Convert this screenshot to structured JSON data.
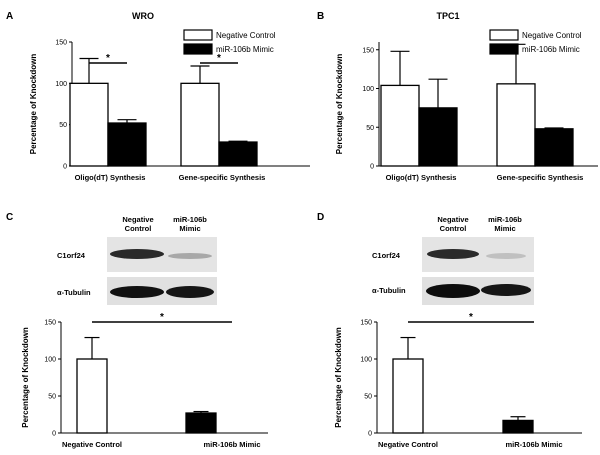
{
  "panels": {
    "A": {
      "letter": "A",
      "title": "WRO"
    },
    "B": {
      "letter": "B",
      "title": "TPC1"
    },
    "C": {
      "letter": "C"
    },
    "D": {
      "letter": "D"
    }
  },
  "legend": {
    "negative_control": "Negative  Control",
    "mimic": "miR-106b Mimic"
  },
  "blots": {
    "C": {
      "header_neg": [
        "Negative",
        "Control"
      ],
      "header_mimic": [
        "miR-106b",
        "Mimic"
      ],
      "row1": "C1orf24",
      "row2": "α-Tubulin"
    },
    "D": {
      "header_neg": [
        "Negative",
        "Control"
      ],
      "header_mimic": [
        "miR-106b",
        "Mimic"
      ],
      "row1": "C1orf24",
      "row2": "α-Tubulin"
    }
  },
  "colors": {
    "negative_control": "#ffffff",
    "mimic": "#000000",
    "stroke": "#000000"
  },
  "chart_data": [
    {
      "panel": "A",
      "type": "bar",
      "title": "WRO",
      "ylabel": "Percentage of  Knockdown",
      "ylim": [
        0,
        150
      ],
      "yticks": [
        0,
        50,
        100,
        150
      ],
      "categories": [
        "Oligo(dT) Synthesis",
        "Gene-specific Synthesis"
      ],
      "series": [
        {
          "name": "Negative  Control",
          "values": [
            100,
            100
          ],
          "errors": [
            30,
            21
          ]
        },
        {
          "name": "miR-106b Mimic",
          "values": [
            52,
            29
          ],
          "errors": [
            4,
            1
          ]
        }
      ],
      "significance": [
        "*",
        "*"
      ],
      "legend": "top-right"
    },
    {
      "panel": "B",
      "type": "bar",
      "title": "TPC1",
      "ylabel": "Percentage of  Knockdown",
      "ylim": [
        0,
        160
      ],
      "yticks": [
        0,
        50,
        100,
        150
      ],
      "categories": [
        "Oligo(dT) Synthesis",
        "Gene-specific Synthesis"
      ],
      "series": [
        {
          "name": "Negative  Control",
          "values": [
            104,
            106
          ],
          "errors": [
            44,
            51
          ]
        },
        {
          "name": "miR-106b Mimic",
          "values": [
            75,
            48
          ],
          "errors": [
            37,
            1
          ]
        }
      ],
      "significance": [],
      "legend": "top-right"
    },
    {
      "panel": "C",
      "type": "bar",
      "ylabel": "Percentage of Knockdown",
      "ylim": [
        0,
        150
      ],
      "yticks": [
        0,
        50,
        100,
        150
      ],
      "categories": [
        "Negative Control",
        "miR-106b Mimic"
      ],
      "values": [
        100,
        27
      ],
      "errors": [
        29,
        2
      ],
      "significance": [
        "*"
      ]
    },
    {
      "panel": "D",
      "type": "bar",
      "ylabel": "Percentage of Knockdown",
      "ylim": [
        0,
        150
      ],
      "yticks": [
        0,
        50,
        100,
        150
      ],
      "categories": [
        "Negative Control",
        "miR-106b Mimic"
      ],
      "values": [
        100,
        17
      ],
      "errors": [
        29,
        5
      ],
      "significance": [
        "*"
      ]
    }
  ]
}
